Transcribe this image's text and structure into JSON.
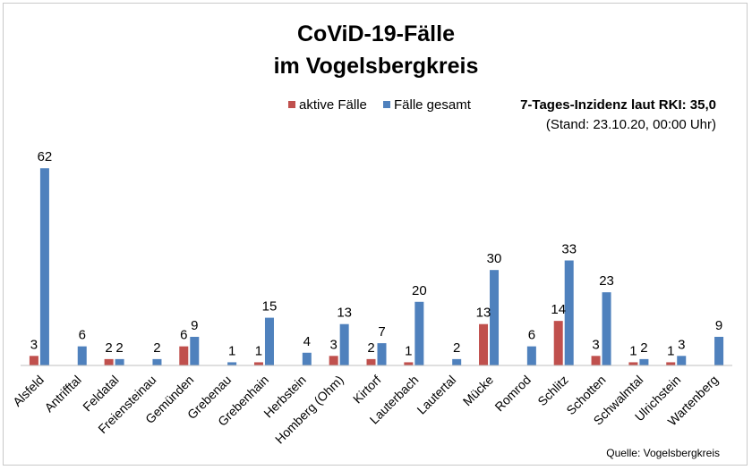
{
  "chart_data": {
    "type": "bar",
    "title_lines": [
      "CoViD-19-Fälle",
      "im Vogelsbergkreis"
    ],
    "xlabel": "",
    "ylabel": "",
    "ylim": [
      0,
      66
    ],
    "grid": false,
    "legend_position": "top-center",
    "categories": [
      "Alsfeld",
      "Antrifftal",
      "Feldatal",
      "Freiensteinau",
      "Gemünden",
      "Grebenau",
      "Grebenhain",
      "Herbstein",
      "Homberg (Ohm)",
      "Kirtorf",
      "Lauterbach",
      "Lautertal",
      "Mücke",
      "Romrod",
      "Schlitz",
      "Schotten",
      "Schwalmtal",
      "Ulrichstein",
      "Wartenberg"
    ],
    "series": [
      {
        "name": "aktive Fälle",
        "color": "#c0504d",
        "values": [
          3,
          0,
          2,
          0,
          6,
          0,
          1,
          0,
          3,
          2,
          1,
          0,
          13,
          0,
          14,
          3,
          1,
          1,
          0
        ],
        "labels": [
          "3",
          "",
          "2",
          "",
          "6",
          "",
          "1",
          "",
          "3",
          "2",
          "1",
          "",
          "13",
          "",
          "14",
          "3",
          "1",
          "1",
          ""
        ]
      },
      {
        "name": "Fälle gesamt",
        "color": "#4f81bd",
        "values": [
          62,
          6,
          2,
          2,
          9,
          1,
          15,
          4,
          13,
          7,
          20,
          2,
          30,
          6,
          33,
          23,
          2,
          3,
          9
        ],
        "labels": [
          "62",
          "6",
          "2",
          "2",
          "9",
          "1",
          "15",
          "4",
          "13",
          "7",
          "20",
          "2",
          "30",
          "6",
          "33",
          "23",
          "2",
          "3",
          "9"
        ]
      }
    ],
    "annotation": {
      "line1": "7-Tages-Inzidenz laut RKI: 35,0",
      "line2": "(Stand: 23.10.20, 00:00 Uhr)"
    },
    "source": "Quelle: Vogelsbergkreis"
  }
}
